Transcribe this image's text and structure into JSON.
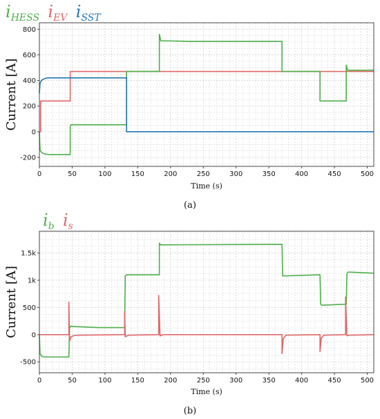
{
  "colors": {
    "green": "#4daf4a",
    "red": "#e06666",
    "blue": "#1f77b4",
    "grid": "#cfcfcf",
    "plot_bg": "#ffffff"
  },
  "chart_data": [
    {
      "type": "line",
      "caption": "(a)",
      "xlabel": "Time (s)",
      "ylabel": "Current [A]",
      "xlim": [
        0,
        510
      ],
      "ylim": [
        -270,
        850
      ],
      "xticks": [
        0,
        50,
        100,
        150,
        200,
        250,
        300,
        350,
        400,
        450,
        500
      ],
      "xtick_labels": [
        "0",
        "50",
        "100",
        "150",
        "200",
        "250",
        "300",
        "350",
        "400",
        "450",
        "500"
      ],
      "yticks": [
        -200,
        0,
        200,
        400,
        600,
        800
      ],
      "ytick_labels": [
        "-200",
        "0",
        "200",
        "400",
        "600",
        "800"
      ],
      "grid": true,
      "legend": [
        {
          "main": "i",
          "sub": "HESS",
          "color": "#4daf4a"
        },
        {
          "main": "i",
          "sub": "EV",
          "color": "#e06666"
        },
        {
          "main": "i",
          "sub": "SST",
          "color": "#1f77b4"
        }
      ],
      "series": [
        {
          "color": "#e06666",
          "x": [
            0,
            2,
            2,
            47,
            47,
            133,
            133,
            510
          ],
          "y": [
            0,
            0,
            240,
            240,
            470,
            470,
            470,
            470
          ]
        },
        {
          "color": "#4daf4a",
          "x": [
            0,
            1,
            3,
            6,
            10,
            15,
            47,
            47,
            48,
            133,
            133,
            135,
            183,
            183,
            185,
            230,
            370,
            370,
            372,
            428,
            428,
            430,
            468,
            468,
            470,
            510
          ],
          "y": [
            0,
            -140,
            -160,
            -170,
            -175,
            -178,
            -178,
            40,
            55,
            55,
            470,
            470,
            470,
            760,
            710,
            705,
            705,
            470,
            470,
            470,
            240,
            240,
            240,
            520,
            480,
            480
          ]
        },
        {
          "color": "#1f77b4",
          "x": [
            0,
            1,
            4,
            8,
            12,
            133,
            133,
            510
          ],
          "y": [
            300,
            380,
            405,
            415,
            420,
            420,
            0,
            0
          ]
        }
      ]
    },
    {
      "type": "line",
      "caption": "(b)",
      "xlabel": "Time (s)",
      "ylabel": "Current [A]",
      "xlim": [
        0,
        510
      ],
      "ylim": [
        -700,
        1900
      ],
      "xticks": [
        0,
        50,
        100,
        150,
        200,
        250,
        300,
        350,
        400,
        450,
        500
      ],
      "xtick_labels": [
        "0",
        "50",
        "100",
        "150",
        "200",
        "250",
        "300",
        "350",
        "400",
        "450",
        "500"
      ],
      "yticks": [
        -500,
        0,
        500,
        1000,
        1500
      ],
      "ytick_labels": [
        "-500",
        "0",
        "500",
        "1k",
        "1.5k"
      ],
      "grid": true,
      "legend": [
        {
          "main": "i",
          "sub": "b",
          "color": "#4daf4a"
        },
        {
          "main": "i",
          "sub": "s",
          "color": "#e06666"
        }
      ],
      "series": [
        {
          "color": "#4daf4a",
          "x": [
            0,
            1,
            4,
            8,
            45,
            46,
            48,
            50,
            90,
            130,
            131,
            133,
            183,
            183,
            185,
            370,
            371,
            373,
            428,
            429,
            431,
            468,
            469,
            471,
            510
          ],
          "y": [
            0,
            -350,
            -400,
            -410,
            -410,
            120,
            160,
            150,
            130,
            130,
            1080,
            1100,
            1100,
            1680,
            1650,
            1660,
            1080,
            1080,
            1100,
            560,
            540,
            560,
            1120,
            1150,
            1130
          ]
        },
        {
          "color": "#e06666",
          "x": [
            0,
            44,
            45,
            45,
            46,
            48,
            52,
            60,
            130,
            130,
            131,
            133,
            137,
            182,
            182,
            184,
            186,
            190,
            370,
            370,
            372,
            376,
            428,
            428,
            430,
            434,
            467,
            467,
            469,
            472,
            510
          ],
          "y": [
            0,
            0,
            0,
            600,
            -120,
            -40,
            -20,
            -10,
            0,
            420,
            -40,
            -25,
            -10,
            0,
            720,
            -25,
            -10,
            0,
            0,
            -350,
            -70,
            -10,
            0,
            -310,
            -60,
            -10,
            0,
            690,
            -20,
            -10,
            0
          ]
        }
      ]
    }
  ]
}
